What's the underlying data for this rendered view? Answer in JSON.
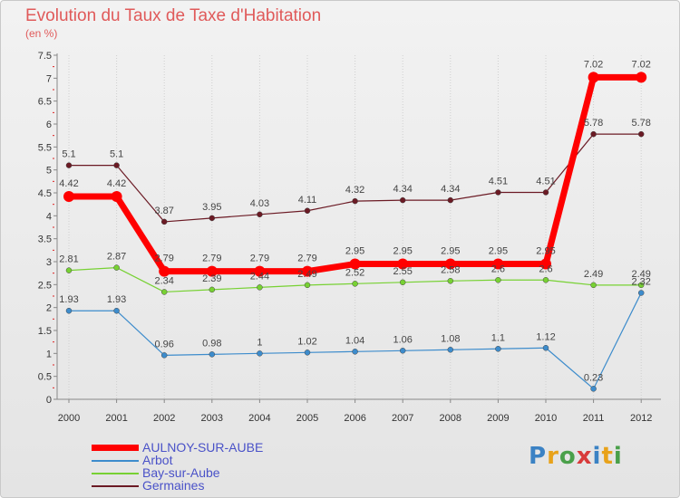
{
  "title": "Evolution du Taux de Taxe d'Habitation",
  "subtitle": "(en %)",
  "logo_text": "Proxiti",
  "chart_data": {
    "type": "line",
    "title": "Evolution du Taux de Taxe d'Habitation",
    "subtitle": "(en %)",
    "xlabel": "",
    "ylabel": "",
    "ylim": [
      0,
      7.5
    ],
    "yticks": [
      "0",
      "0.5",
      "1",
      "1.5",
      "2",
      "2.5",
      "3",
      "3.5",
      "4",
      "4.5",
      "5",
      "5.5",
      "6",
      "6.5",
      "7",
      "7.5"
    ],
    "ytick_values": [
      0,
      0.5,
      1,
      1.5,
      2,
      2.5,
      3,
      3.5,
      4,
      4.5,
      5,
      5.5,
      6,
      6.5,
      7,
      7.5
    ],
    "grid": "vertical",
    "legend_position": "bottom-left",
    "categories": [
      "2000",
      "2001",
      "2002",
      "2003",
      "2004",
      "2005",
      "2006",
      "2007",
      "2008",
      "2009",
      "2010",
      "2011",
      "2012"
    ],
    "series": [
      {
        "name": "AULNOY-SUR-AUBE",
        "color": "#ff0000",
        "values": [
          4.42,
          4.42,
          2.79,
          2.79,
          2.79,
          2.79,
          2.95,
          2.95,
          2.95,
          2.95,
          2.95,
          7.02,
          7.02
        ],
        "labels": [
          "4.42",
          "4.42",
          "2.79",
          "2.79",
          "2.79",
          "2.79",
          "2.95",
          "2.95",
          "2.95",
          "2.95",
          "2.95",
          "7.02",
          "7.02"
        ]
      },
      {
        "name": "Arbot",
        "color": "#3d8ccc",
        "values": [
          1.93,
          1.93,
          0.96,
          0.98,
          1,
          1.02,
          1.04,
          1.06,
          1.08,
          1.1,
          1.12,
          0.23,
          2.32
        ],
        "labels": [
          "1.93",
          "1.93",
          "0.96",
          "0.98",
          "1",
          "1.02",
          "1.04",
          "1.06",
          "1.08",
          "1.1",
          "1.12",
          "0.23",
          "2.32"
        ]
      },
      {
        "name": "Bay-sur-Aube",
        "color": "#77d133",
        "values": [
          2.81,
          2.87,
          2.34,
          2.39,
          2.44,
          2.49,
          2.52,
          2.55,
          2.58,
          2.6,
          2.6,
          2.49,
          2.49
        ],
        "labels": [
          "2.81",
          "2.87",
          "2.34",
          "2.39",
          "2.44",
          "2.49",
          "2.52",
          "2.55",
          "2.58",
          "2.6",
          "2.6",
          "2.49",
          "2.49"
        ]
      },
      {
        "name": "Germaines",
        "color": "#6b1a24",
        "values": [
          5.1,
          5.1,
          3.87,
          3.95,
          4.03,
          4.11,
          4.32,
          4.34,
          4.34,
          4.51,
          4.51,
          5.78,
          5.78
        ],
        "labels": [
          "5.1",
          "5.1",
          "3.87",
          "3.95",
          "4.03",
          "4.11",
          "4.32",
          "4.34",
          "4.34",
          "4.51",
          "4.51",
          "5.78",
          "5.78"
        ]
      }
    ]
  }
}
